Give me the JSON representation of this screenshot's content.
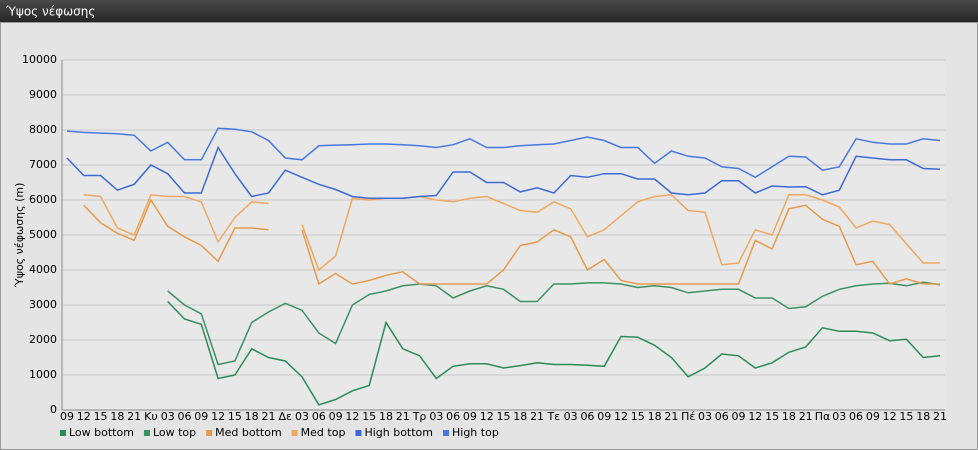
{
  "chart_data": {
    "type": "line",
    "title": "Ύψος νέφωσης",
    "ylabel": "Ύψος νέφωσης (m)",
    "categories": [
      "09",
      "12",
      "15",
      "18",
      "21",
      "Κυ",
      "03",
      "06",
      "09",
      "12",
      "15",
      "18",
      "21",
      "Δε",
      "03",
      "06",
      "09",
      "12",
      "15",
      "18",
      "21",
      "Τρ",
      "03",
      "06",
      "09",
      "12",
      "15",
      "18",
      "21",
      "Τε",
      "03",
      "06",
      "09",
      "12",
      "15",
      "18",
      "21",
      "Πέ",
      "03",
      "06",
      "09",
      "12",
      "15",
      "18",
      "21",
      "Πα",
      "03",
      "06",
      "09",
      "12",
      "15",
      "18",
      "21"
    ],
    "series": [
      {
        "name": "Low bottom",
        "color": "#2a8c55",
        "values": [
          null,
          null,
          null,
          null,
          null,
          null,
          3100,
          2600,
          2450,
          900,
          1000,
          1750,
          1500,
          1400,
          950,
          150,
          300,
          550,
          700,
          2500,
          1750,
          1550,
          900,
          1250,
          1320,
          1320,
          1200,
          1270,
          1350,
          1300,
          1300,
          1280,
          1250,
          2100,
          2080,
          1850,
          1500,
          950,
          1200,
          1600,
          1550,
          1200,
          1350,
          1650,
          1800,
          2350,
          2250,
          2250,
          2200,
          1980,
          2020,
          1500,
          1550
        ]
      },
      {
        "name": "Low top",
        "color": "#3a9262",
        "values": [
          null,
          null,
          null,
          null,
          null,
          null,
          3400,
          3000,
          2750,
          1300,
          1400,
          2500,
          2800,
          3050,
          2850,
          2200,
          1900,
          3000,
          3300,
          3400,
          3550,
          3600,
          3550,
          3200,
          3400,
          3550,
          3450,
          3100,
          3100,
          3600,
          3600,
          3630,
          3630,
          3600,
          3500,
          3550,
          3500,
          3350,
          3400,
          3450,
          3450,
          3200,
          3200,
          2900,
          2950,
          3250,
          3450,
          3550,
          3600,
          3620,
          3550,
          3650,
          3580
        ]
      },
      {
        "name": "Med bottom",
        "color": "#e89a4c",
        "values": [
          null,
          5850,
          5350,
          5050,
          4850,
          6000,
          5250,
          4950,
          4700,
          4250,
          5200,
          5200,
          5150,
          null,
          5150,
          3600,
          3900,
          3600,
          3700,
          3850,
          3950,
          3600,
          3600,
          3600,
          3600,
          3600,
          4000,
          4700,
          4800,
          5150,
          4950,
          4000,
          4300,
          3700,
          3600,
          3600,
          3600,
          3600,
          3600,
          3600,
          3600,
          4850,
          4600,
          5750,
          5850,
          5450,
          5250,
          4150,
          4250,
          3600,
          3750,
          3600,
          3600
        ]
      },
      {
        "name": "Med top",
        "color": "#f0a860",
        "values": [
          null,
          6150,
          6100,
          5200,
          5000,
          6150,
          6100,
          6100,
          5950,
          4800,
          5500,
          5950,
          5900,
          null,
          5300,
          4000,
          4400,
          6050,
          6000,
          6050,
          6050,
          6100,
          6000,
          5950,
          6050,
          6100,
          5900,
          5700,
          5650,
          5950,
          5750,
          4950,
          5150,
          5550,
          5950,
          6100,
          6150,
          5700,
          5650,
          4150,
          4200,
          5150,
          5000,
          6150,
          6150,
          6000,
          5800,
          5200,
          5400,
          5300,
          4750,
          4200,
          4200
        ]
      },
      {
        "name": "High bottom",
        "color": "#3b6ad6",
        "values": [
          7200,
          6700,
          6700,
          6280,
          6450,
          7000,
          6750,
          6200,
          6200,
          7500,
          6750,
          6100,
          6200,
          6850,
          6650,
          6450,
          6300,
          6100,
          6050,
          6050,
          6050,
          6100,
          6130,
          6800,
          6800,
          6500,
          6500,
          6230,
          6350,
          6200,
          6700,
          6650,
          6750,
          6750,
          6600,
          6600,
          6200,
          6150,
          6200,
          6550,
          6550,
          6200,
          6400,
          6370,
          6380,
          6150,
          6280,
          7250,
          7200,
          7150,
          7150,
          6900,
          6880
        ]
      },
      {
        "name": "High top",
        "color": "#4778e0",
        "values": [
          7970,
          7930,
          7910,
          7890,
          7850,
          7400,
          7650,
          7150,
          7150,
          8050,
          8020,
          7950,
          7700,
          7200,
          7150,
          7550,
          7570,
          7580,
          7600,
          7600,
          7580,
          7550,
          7500,
          7580,
          7750,
          7500,
          7500,
          7550,
          7580,
          7600,
          7700,
          7800,
          7700,
          7500,
          7500,
          7050,
          7400,
          7250,
          7200,
          6950,
          6900,
          6650,
          6950,
          7250,
          7230,
          6850,
          6950,
          7750,
          7650,
          7600,
          7600,
          7750,
          7700
        ]
      }
    ],
    "ylim": [
      0,
      10000
    ],
    "yticks": [
      0,
      1000,
      2000,
      3000,
      4000,
      5000,
      6000,
      7000,
      8000,
      9000,
      10000
    ],
    "grid": true,
    "legend": "bottom"
  }
}
